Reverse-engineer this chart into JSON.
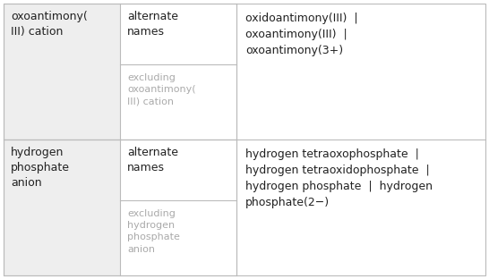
{
  "rows": [
    {
      "col1": "oxoantimony(\nIII) cation",
      "col2_top": "alternate\nnames",
      "col2_bot": "excluding\noxoantimony(\nIII) cation",
      "col3": "oxidoantimony(III)  |\noxoantimony(III)  |\noxoantimony(3+)",
      "col1_bg": "#eeeeee"
    },
    {
      "col1": "hydrogen\nphosphate\nanion",
      "col2_top": "alternate\nnames",
      "col2_bot": "excluding\nhydrogen\nphosphate\nanion",
      "col3": "hydrogen tetraoxophosphate  |\nhydrogen tetraoxidophosphate  |\nhydrogen phosphate  |  hydrogen\nphosphate(2−)",
      "col1_bg": "#eeeeee"
    }
  ],
  "border_color": "#bbbbbb",
  "text_color_main": "#222222",
  "text_color_dim": "#aaaaaa",
  "font_size_main": 9,
  "font_size_dim": 8,
  "background": "#ffffff"
}
